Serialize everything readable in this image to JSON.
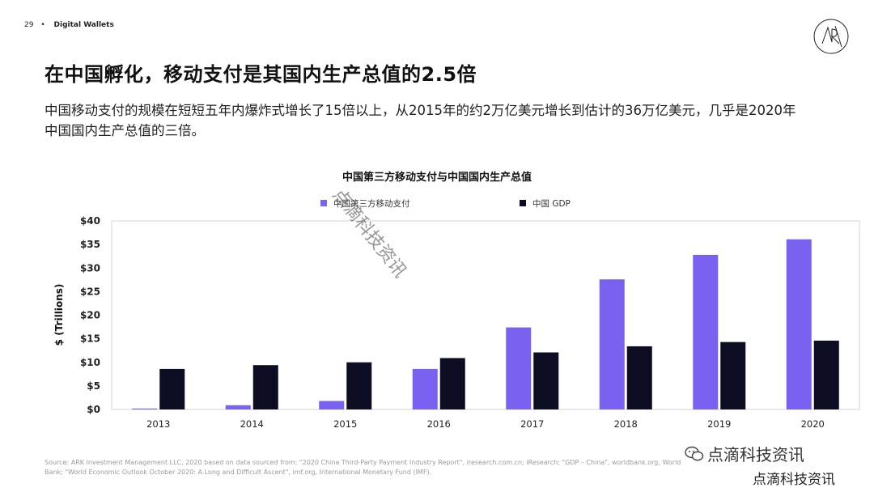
{
  "header": {
    "page_number": "29",
    "bullet": "•",
    "section": "Digital Wallets"
  },
  "title": {
    "prefix": "在中国孵化，移动支付是其国内生产总值的",
    "highlight": "2.5",
    "suffix": "倍"
  },
  "subtitle": "中国移动支付的规模在短短五年内爆炸式增长了15倍以上，从2015年的约2万亿美元增长到估计的36万亿美元，几乎是2020年中国国内生产总值的三倍。",
  "watermark_diagonal": "点滴科技资讯",
  "chart_data": {
    "type": "bar",
    "title": "中国第三方移动支付与中国国内生产总值",
    "categories": [
      "2013",
      "2014",
      "2015",
      "2016",
      "2017",
      "2018",
      "2019",
      "2020"
    ],
    "series": [
      {
        "name": "中国第三方移动支付",
        "color": "#7b61f0",
        "values": [
          0.2,
          0.9,
          1.8,
          8.6,
          17.4,
          27.6,
          32.8,
          36.1
        ]
      },
      {
        "name": "中国 GDP",
        "color": "#0c0c22",
        "values": [
          8.6,
          9.4,
          10.0,
          10.9,
          12.1,
          13.4,
          14.3,
          14.6
        ]
      }
    ],
    "ylim": [
      0,
      40
    ],
    "yticks": [
      0,
      5,
      10,
      15,
      20,
      25,
      30,
      35,
      40
    ],
    "ytick_labels": [
      "$0",
      "$5",
      "$10",
      "$15",
      "$20",
      "$25",
      "$30",
      "$35",
      "$40"
    ],
    "ylabel": "$ (Trillions)",
    "xlabel": "",
    "grid": false,
    "legend_position": "top"
  },
  "source_note": "Source: ARK Investment Management LLC, 2020 based on data sourced from: \"2020 China Third-Party Payment Industry Report\", iresearch.com.cn; iResearch; \"GDP – China\", worldbank.org, World Bank; \"World Economic Outlook October 2020: A Long and Difficult Ascent\", imf.org, International Monetary Fund (IMF).",
  "watermark_footer": {
    "line1": "点滴科技资讯",
    "line2": "点滴科技资讯"
  }
}
